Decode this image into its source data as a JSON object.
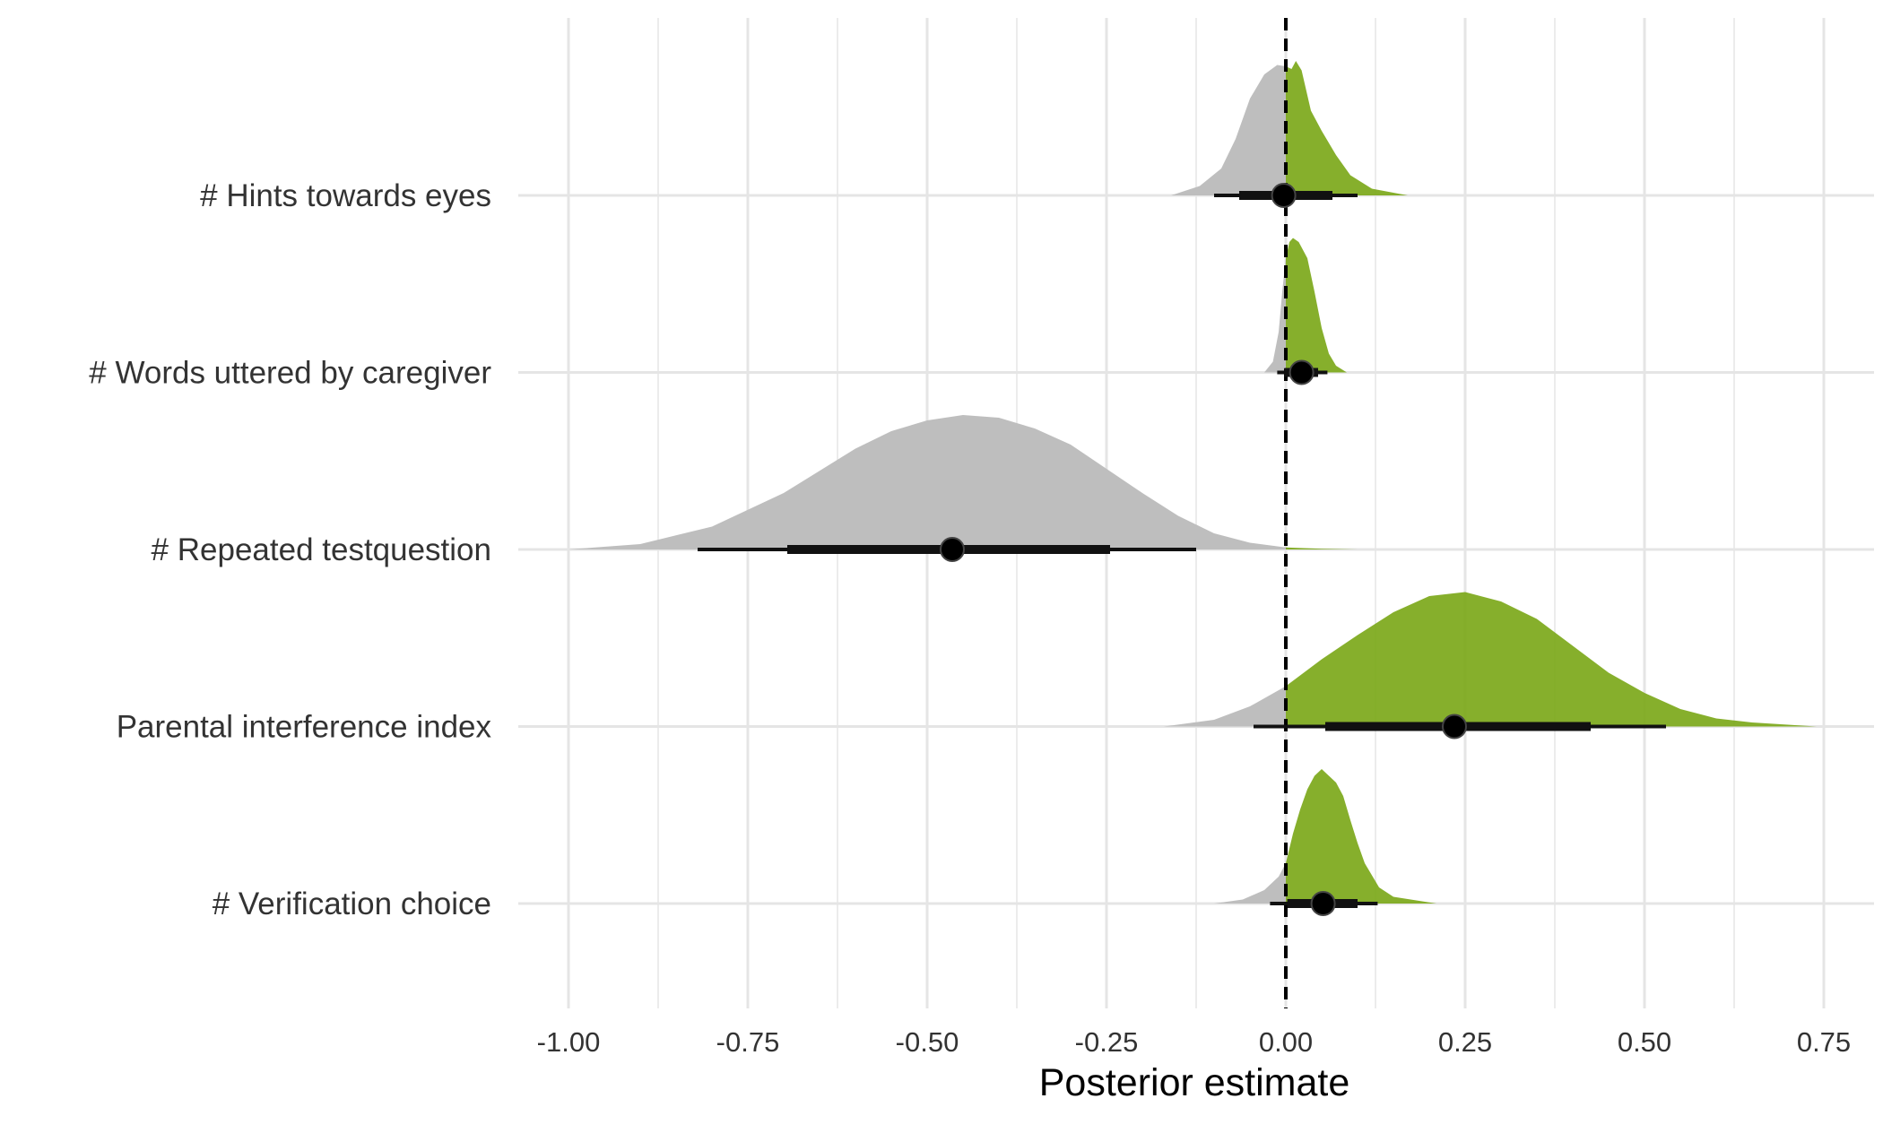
{
  "chart_data": {
    "type": "halfeye",
    "title": "",
    "xlabel": "Posterior estimate",
    "ylabel": "",
    "xlim": [
      -1.07,
      0.82
    ],
    "xticks": [
      -1.0,
      -0.75,
      -0.5,
      -0.25,
      0.0,
      0.25,
      0.5,
      0.75
    ],
    "xtick_labels": [
      "-1.00",
      "-0.75",
      "-0.50",
      "-0.25",
      "0.00",
      "0.25",
      "0.50",
      "0.75"
    ],
    "grid": true,
    "reference_line": {
      "x": 0,
      "style": "dashed",
      "color": "#000000"
    },
    "colors": {
      "negative": "#bebebe",
      "positive": "#7ca81a",
      "point": "#000000",
      "grid": "#e5e5e5"
    },
    "legend": "none",
    "categories": [
      {
        "label": "# Hints towards eyes",
        "median": -0.003,
        "ci66": [
          -0.065,
          0.065
        ],
        "ci95": [
          -0.1,
          0.1
        ],
        "lo": -0.16,
        "hi": 0.17,
        "density": [
          [
            -0.16,
            0.0
          ],
          [
            -0.12,
            0.07
          ],
          [
            -0.09,
            0.2
          ],
          [
            -0.07,
            0.42
          ],
          [
            -0.05,
            0.72
          ],
          [
            -0.03,
            0.9
          ],
          [
            -0.012,
            0.97
          ],
          [
            0.0,
            0.96
          ],
          [
            0.008,
            0.94
          ],
          [
            0.014,
            1.0
          ],
          [
            0.022,
            0.93
          ],
          [
            0.035,
            0.63
          ],
          [
            0.05,
            0.48
          ],
          [
            0.07,
            0.3
          ],
          [
            0.09,
            0.15
          ],
          [
            0.12,
            0.05
          ],
          [
            0.17,
            0.0
          ]
        ]
      },
      {
        "label": "# Words uttered by caregiver",
        "median": 0.022,
        "ci66": [
          -0.002,
          0.045
        ],
        "ci95": [
          -0.012,
          0.058
        ],
        "lo": -0.03,
        "hi": 0.085,
        "density": [
          [
            -0.03,
            0.0
          ],
          [
            -0.018,
            0.08
          ],
          [
            -0.01,
            0.3
          ],
          [
            -0.005,
            0.6
          ],
          [
            0.0,
            0.85
          ],
          [
            0.005,
            0.97
          ],
          [
            0.01,
            1.0
          ],
          [
            0.018,
            0.97
          ],
          [
            0.03,
            0.85
          ],
          [
            0.04,
            0.6
          ],
          [
            0.05,
            0.33
          ],
          [
            0.06,
            0.14
          ],
          [
            0.07,
            0.05
          ],
          [
            0.085,
            0.0
          ]
        ]
      },
      {
        "label": "# Repeated testquestion",
        "median": -0.465,
        "ci66": [
          -0.695,
          -0.245
        ],
        "ci95": [
          -0.82,
          -0.125
        ],
        "lo": -1.0,
        "hi": 0.1,
        "density": [
          [
            -1.0,
            0.0
          ],
          [
            -0.9,
            0.04
          ],
          [
            -0.8,
            0.17
          ],
          [
            -0.7,
            0.42
          ],
          [
            -0.6,
            0.75
          ],
          [
            -0.55,
            0.88
          ],
          [
            -0.5,
            0.96
          ],
          [
            -0.45,
            1.0
          ],
          [
            -0.4,
            0.98
          ],
          [
            -0.35,
            0.9
          ],
          [
            -0.3,
            0.78
          ],
          [
            -0.25,
            0.6
          ],
          [
            -0.2,
            0.42
          ],
          [
            -0.15,
            0.25
          ],
          [
            -0.1,
            0.12
          ],
          [
            -0.05,
            0.05
          ],
          [
            0.0,
            0.015
          ],
          [
            0.05,
            0.005
          ],
          [
            0.1,
            0.0
          ]
        ]
      },
      {
        "label": "Parental interference index",
        "median": 0.235,
        "ci66": [
          0.055,
          0.425
        ],
        "ci95": [
          -0.045,
          0.53
        ],
        "lo": -0.17,
        "hi": 0.74,
        "density": [
          [
            -0.17,
            0.0
          ],
          [
            -0.1,
            0.05
          ],
          [
            -0.05,
            0.15
          ],
          [
            0.0,
            0.3
          ],
          [
            0.05,
            0.5
          ],
          [
            0.1,
            0.68
          ],
          [
            0.15,
            0.85
          ],
          [
            0.2,
            0.97
          ],
          [
            0.25,
            1.0
          ],
          [
            0.3,
            0.93
          ],
          [
            0.35,
            0.8
          ],
          [
            0.4,
            0.6
          ],
          [
            0.45,
            0.4
          ],
          [
            0.5,
            0.25
          ],
          [
            0.55,
            0.13
          ],
          [
            0.6,
            0.06
          ],
          [
            0.65,
            0.03
          ],
          [
            0.74,
            0.0
          ]
        ]
      },
      {
        "label": "# Verification choice",
        "median": 0.052,
        "ci66": [
          0.002,
          0.1
        ],
        "ci95": [
          -0.022,
          0.128
        ],
        "lo": -0.1,
        "hi": 0.21,
        "density": [
          [
            -0.1,
            0.0
          ],
          [
            -0.06,
            0.03
          ],
          [
            -0.03,
            0.1
          ],
          [
            -0.01,
            0.2
          ],
          [
            0.0,
            0.3
          ],
          [
            0.01,
            0.52
          ],
          [
            0.02,
            0.7
          ],
          [
            0.03,
            0.85
          ],
          [
            0.04,
            0.95
          ],
          [
            0.05,
            1.0
          ],
          [
            0.06,
            0.95
          ],
          [
            0.07,
            0.9
          ],
          [
            0.08,
            0.8
          ],
          [
            0.09,
            0.62
          ],
          [
            0.1,
            0.45
          ],
          [
            0.11,
            0.3
          ],
          [
            0.13,
            0.12
          ],
          [
            0.15,
            0.05
          ],
          [
            0.21,
            0.0
          ]
        ]
      }
    ]
  }
}
